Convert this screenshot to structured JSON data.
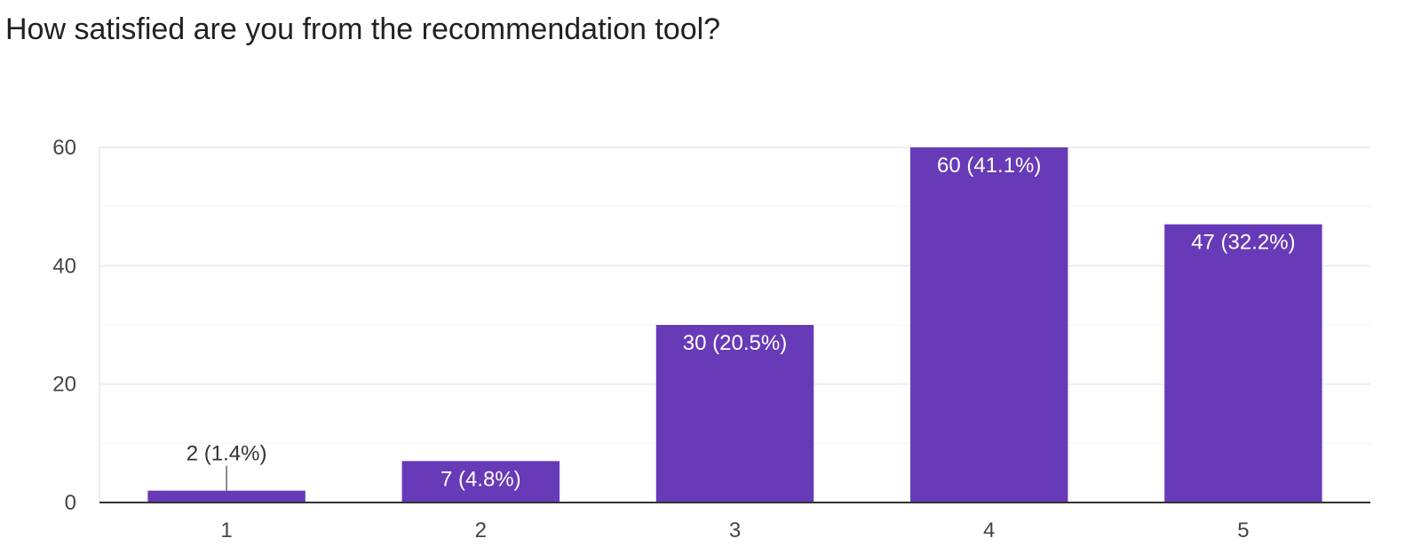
{
  "chart_data": {
    "type": "bar",
    "title": "How satisfied are you from the recommendation tool?",
    "xlabel": "",
    "ylabel": "",
    "categories": [
      "1",
      "2",
      "3",
      "4",
      "5"
    ],
    "values": [
      2,
      7,
      30,
      60,
      47
    ],
    "data_labels": [
      "2 (1.4%)",
      "7 (4.8%)",
      "30 (20.5%)",
      "60 (41.1%)",
      "47 (32.2%)"
    ],
    "ylim": [
      0,
      60
    ],
    "y_ticks": [
      0,
      20,
      40,
      60
    ],
    "y_minor_ticks": [
      10,
      30,
      50
    ],
    "grid": true,
    "legend": "none",
    "colors": {
      "bar": "#673ab7",
      "label_inside": "#ffffff",
      "label_outside": "#333333",
      "grid": "#eeeeee",
      "axis": "#333333"
    }
  }
}
